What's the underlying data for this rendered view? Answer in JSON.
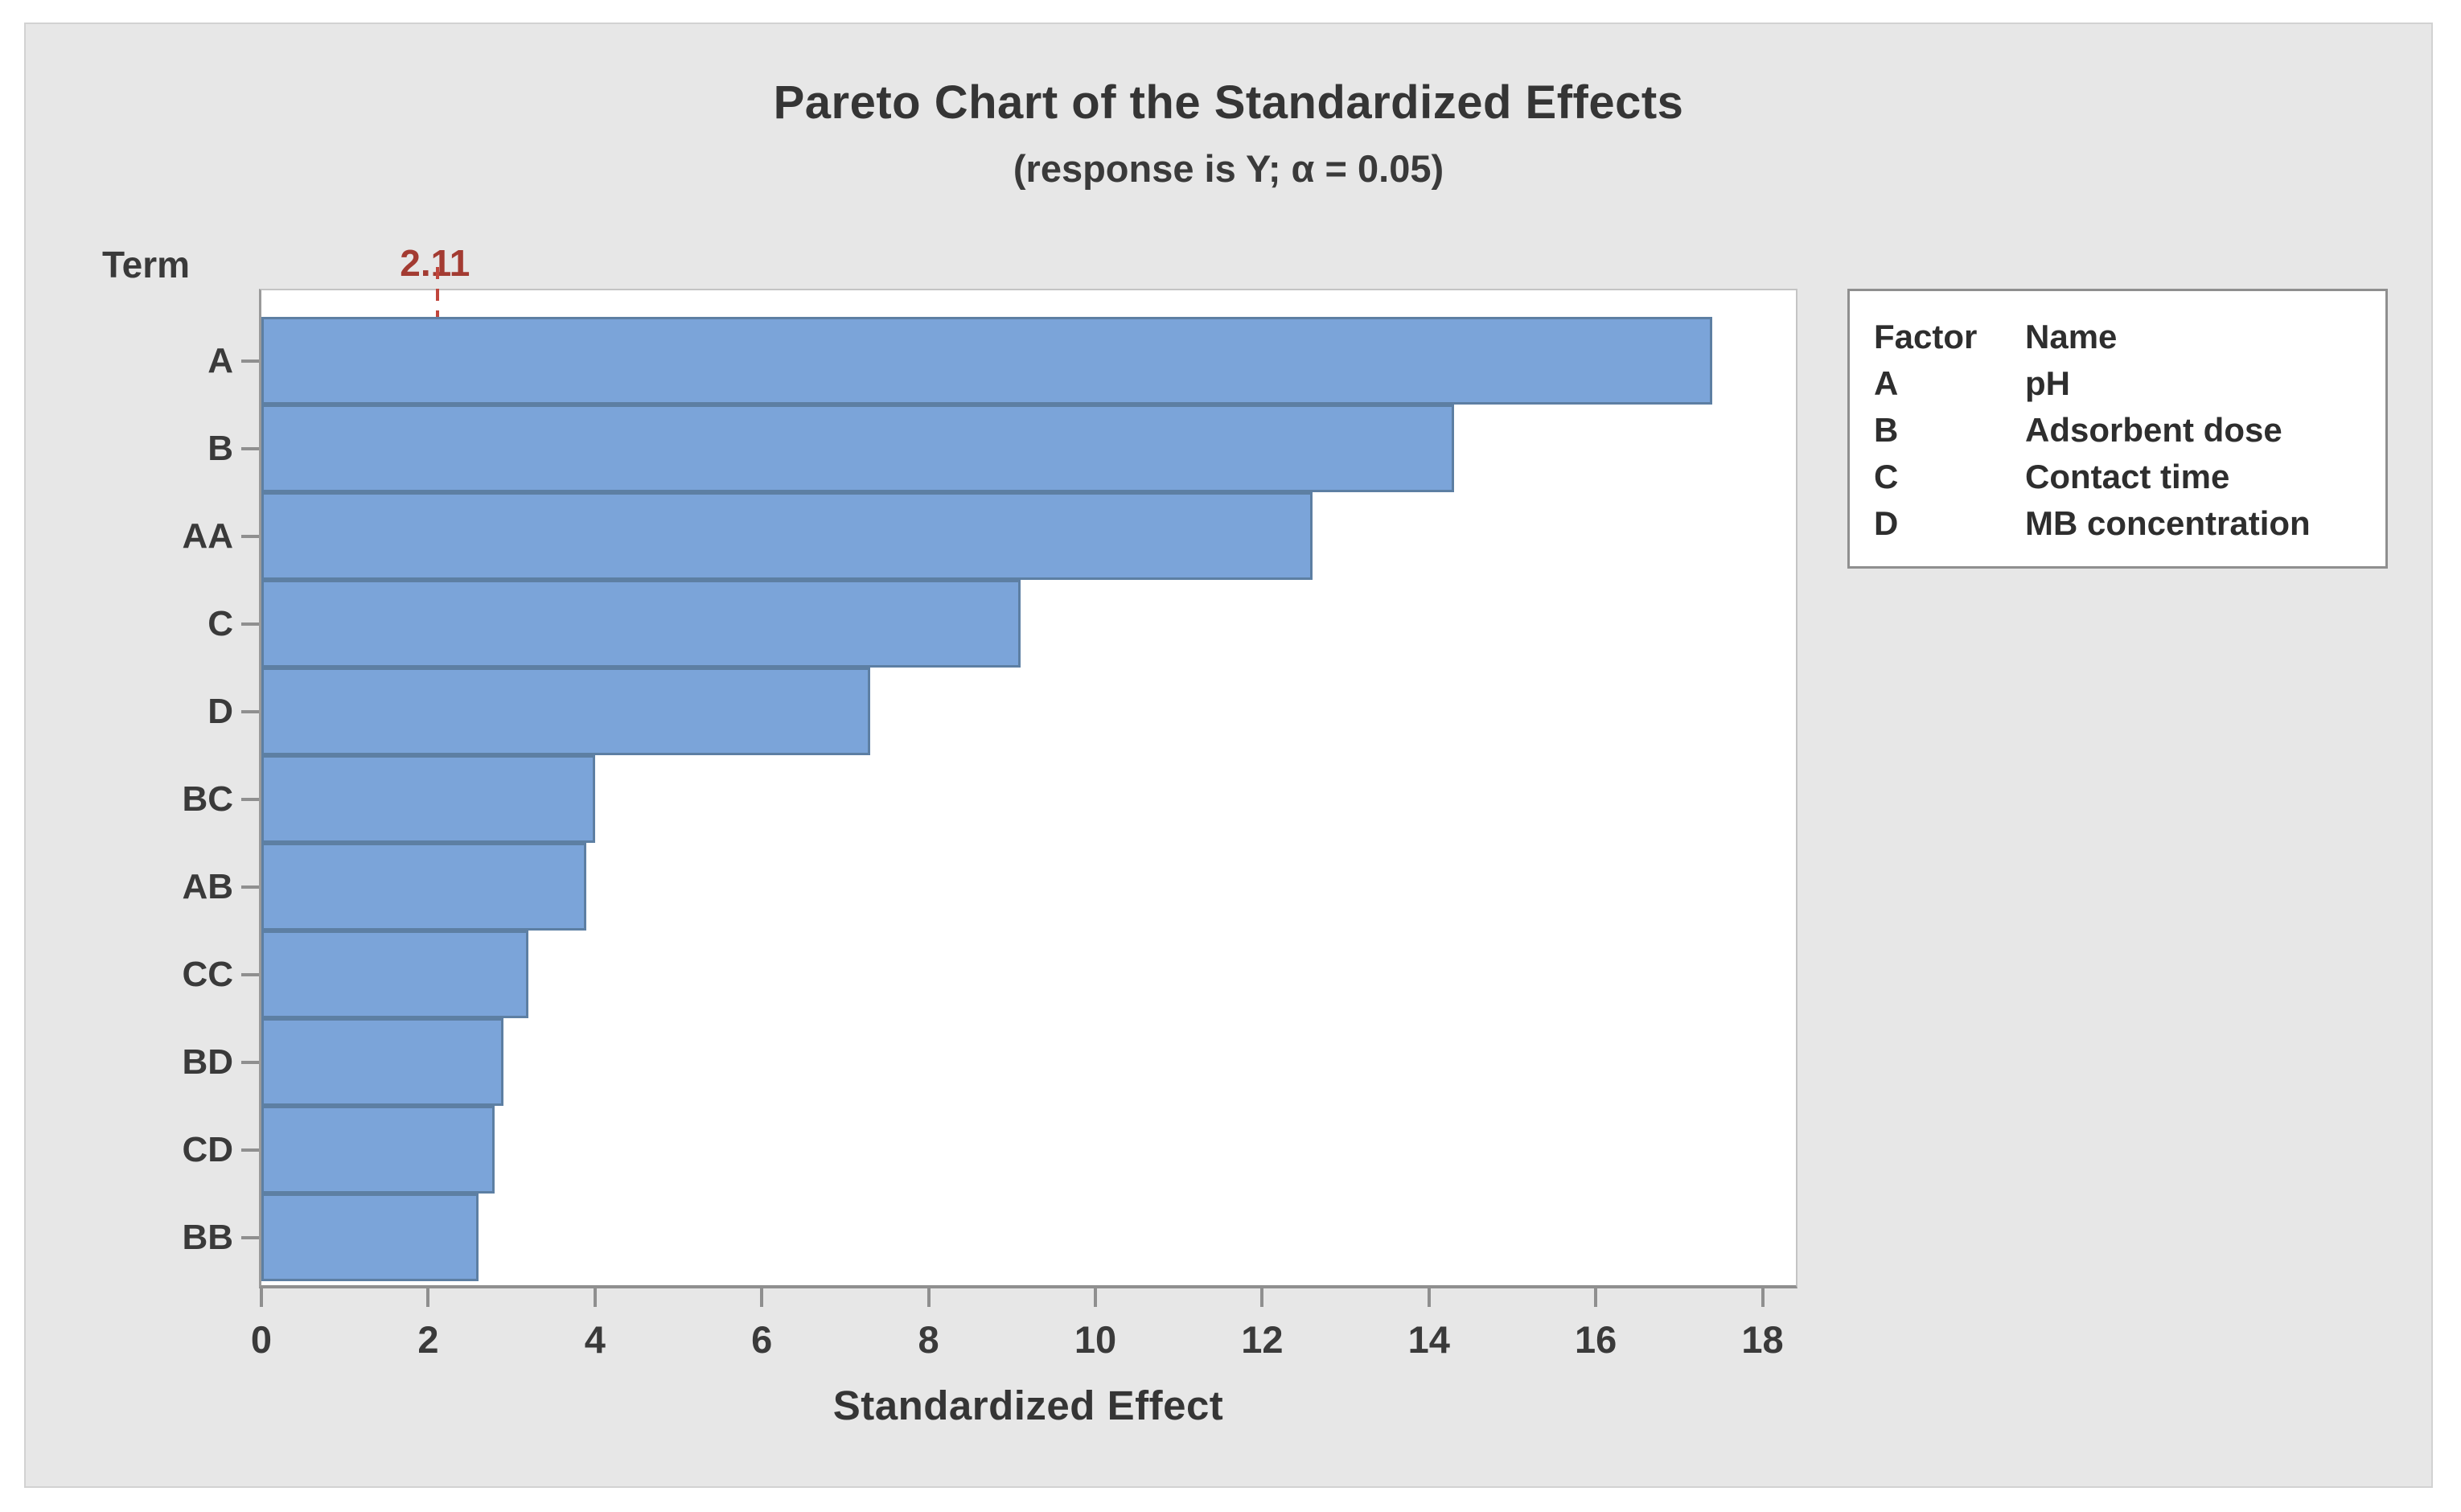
{
  "figure": {
    "background": "#E7E7E7",
    "border_color": "#D2D2D2"
  },
  "chart_data": {
    "type": "bar",
    "orientation": "horizontal",
    "title": "Pareto Chart of the Standardized Effects",
    "subtitle": "(response is Y; α = 0.05)",
    "xlabel": "Standardized Effect",
    "ylabel": "Term",
    "categories": [
      "A",
      "B",
      "AA",
      "C",
      "D",
      "BC",
      "AB",
      "CC",
      "BD",
      "CD",
      "BB"
    ],
    "values": [
      17.4,
      14.3,
      12.6,
      9.1,
      7.3,
      4.0,
      3.9,
      3.2,
      2.9,
      2.8,
      2.6
    ],
    "xlim": [
      0,
      18.4
    ],
    "x_ticks": [
      0,
      2,
      4,
      6,
      8,
      10,
      12,
      14,
      16,
      18
    ],
    "reference_line": 2.11,
    "reference_label": "2.11",
    "grid": false,
    "legend_position": "right",
    "colors": {
      "bar_fill": "#7BA4D9",
      "bar_border": "#5D7FA3",
      "reference_line": "#C0453C",
      "reference_label": "#A33B32",
      "axis_line": "#8F8F8F",
      "plot_background": "#FFFFFF",
      "text": "#3A3A3A"
    }
  },
  "legend": {
    "headers": [
      "Factor",
      "Name"
    ],
    "rows": [
      [
        "A",
        "pH"
      ],
      [
        "B",
        "Adsorbent dose"
      ],
      [
        "C",
        "Contact time"
      ],
      [
        "D",
        "MB concentration"
      ]
    ]
  }
}
